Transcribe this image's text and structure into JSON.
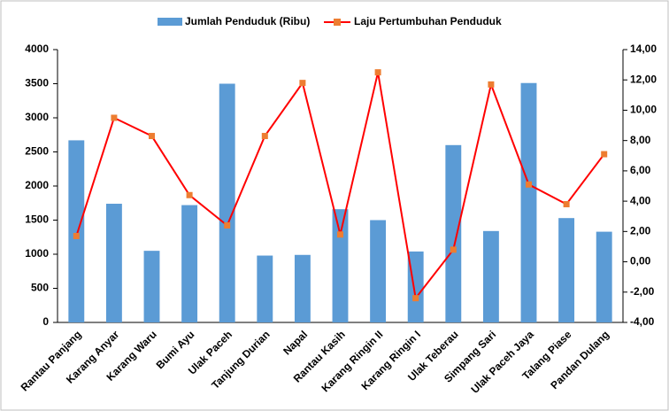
{
  "chart_data": {
    "type": "combo",
    "categories": [
      "Rantau Panjang",
      "Karang Anyar",
      "Karang Waru",
      "Bumi Ayu",
      "Ulak Paceh",
      "Tanjung Durian",
      "Napal",
      "Rantau Kasih",
      "Karang Ringin II",
      "Karang Ringin I",
      "Ulak Teberau",
      "Simpang Sari",
      "Ulak Paceh Jaya",
      "Talang Piase",
      "Pandan Dulang"
    ],
    "series": [
      {
        "name": "Jumlah Penduduk (Ribu)",
        "type": "bar",
        "color": "#5b9bd5",
        "values": [
          2670,
          1740,
          1050,
          1720,
          3500,
          980,
          990,
          1660,
          1500,
          1040,
          2600,
          1340,
          3510,
          1530,
          1330
        ]
      },
      {
        "name": "Laju Pertumbuhan Penduduk",
        "type": "line",
        "axis": "y2",
        "color": "#ff0000",
        "marker_color": "#ed7d31",
        "values": [
          1.7,
          9.5,
          8.3,
          4.4,
          2.4,
          8.3,
          11.8,
          1.8,
          12.5,
          -2.4,
          0.8,
          11.7,
          5.1,
          3.8,
          7.1
        ]
      }
    ],
    "ylim": [
      0,
      4000
    ],
    "yticks": [
      0,
      500,
      1000,
      1500,
      2000,
      2500,
      3000,
      3500,
      4000
    ],
    "y2lim": [
      -4,
      14
    ],
    "y2ticks": [
      {
        "value": -4,
        "label": "-4,00"
      },
      {
        "value": -2,
        "label": "-2,00"
      },
      {
        "value": 0,
        "label": "0,00"
      },
      {
        "value": 2,
        "label": "2,00"
      },
      {
        "value": 4,
        "label": "4,00"
      },
      {
        "value": 6,
        "label": "6,00"
      },
      {
        "value": 8,
        "label": "8,00"
      },
      {
        "value": 10,
        "label": "10,00"
      },
      {
        "value": 12,
        "label": "12,00"
      },
      {
        "value": 14,
        "label": "14,00"
      }
    ],
    "grid": false,
    "legend": "top"
  }
}
